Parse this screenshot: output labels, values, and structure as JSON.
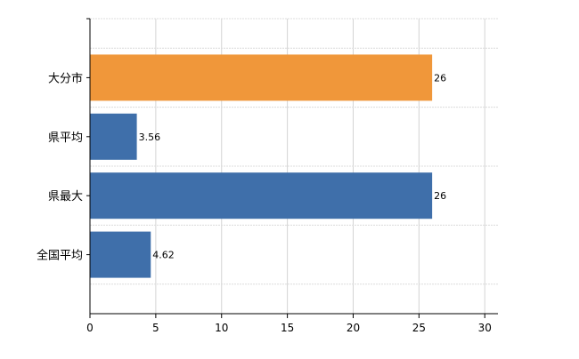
{
  "chart_data": {
    "type": "bar",
    "orientation": "horizontal",
    "categories": [
      "大分市",
      "県平均",
      "県最大",
      "全国平均"
    ],
    "values": [
      26,
      3.56,
      26,
      4.62
    ],
    "value_labels": [
      "26",
      "3.56",
      "26",
      "4.62"
    ],
    "colors": [
      "#f0973a",
      "#3f6faa",
      "#3f6faa",
      "#3f6faa"
    ],
    "xlim": [
      0,
      31
    ],
    "xticks": [
      0,
      5,
      10,
      15,
      20,
      25,
      30
    ],
    "xtick_labels": [
      "0",
      "5",
      "10",
      "15",
      "20",
      "25",
      "30"
    ],
    "grid": true,
    "legend": "none"
  }
}
